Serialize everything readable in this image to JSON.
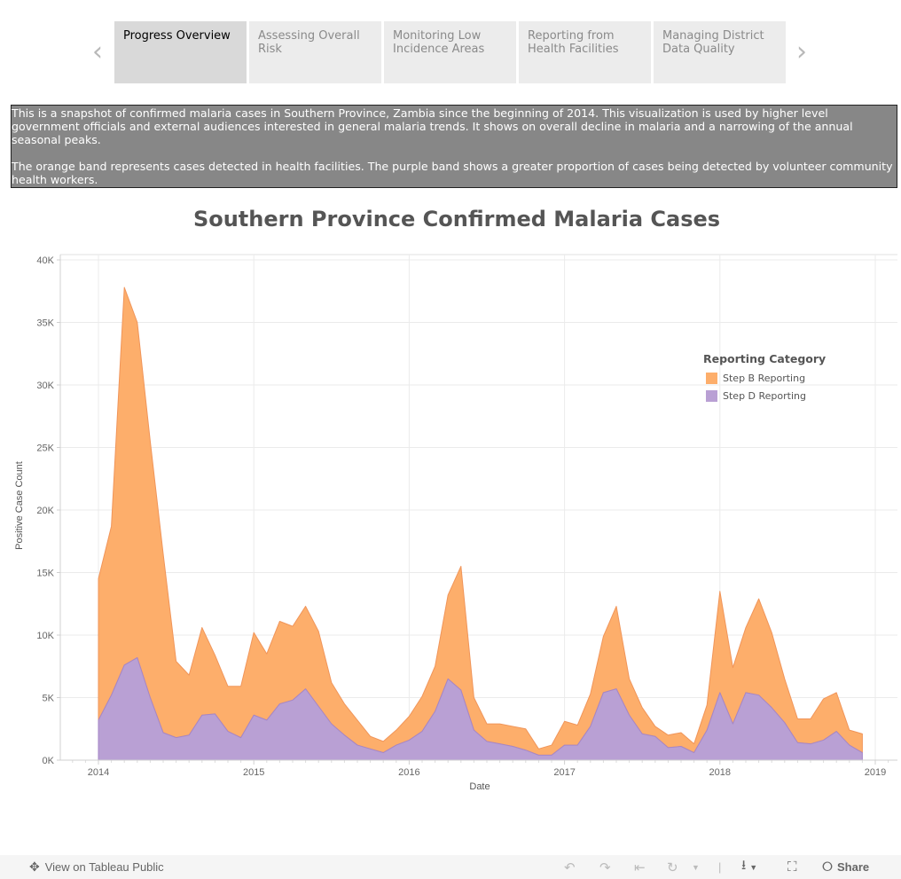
{
  "story_nav": {
    "prev_icon": "chevron-left-icon",
    "next_icon": "chevron-right-icon",
    "tabs": [
      {
        "label": "Progress Overview",
        "active": true
      },
      {
        "label": "Assessing Overall Risk",
        "active": false
      },
      {
        "label": "Monitoring Low Incidence Areas",
        "active": false
      },
      {
        "label": "Reporting from Health Facilities",
        "active": false
      },
      {
        "label": "Managing District Data Quality",
        "active": false
      }
    ]
  },
  "description": {
    "paragraph1": "This is a snapshot of confirmed malaria cases in Southern Province, Zambia since the beginning of 2014. This visualization is used by higher level government officials and external audiences interested in general malaria trends. It shows on overall decline in malaria and a narrowing of the annual seasonal peaks.",
    "paragraph2": "The orange band represents cases detected in health facilities. The purple band shows a greater proportion of cases being detected by volunteer community health workers."
  },
  "chart_data": {
    "type": "area",
    "stacked": true,
    "title": "Southern Province Confirmed Malaria Cases",
    "xlabel": "Date",
    "ylabel": "Positive Case Count",
    "ylim": [
      0,
      40000
    ],
    "yticks": [
      0,
      5000,
      10000,
      15000,
      20000,
      25000,
      30000,
      35000,
      40000
    ],
    "ytick_labels": [
      "0K",
      "5K",
      "10K",
      "15K",
      "20K",
      "25K",
      "30K",
      "35K",
      "40K"
    ],
    "xticks": [
      "2014",
      "2015",
      "2016",
      "2017",
      "2018",
      "2019"
    ],
    "x_start": "2014-01",
    "x_interval": "month",
    "grid": true,
    "legend": {
      "title": "Reporting Category",
      "placement": "top-right"
    },
    "series": [
      {
        "name": "Step D Reporting",
        "color": "#b9a0d4",
        "line_color": "#a586c6",
        "values": [
          3200,
          5200,
          7600,
          8200,
          5000,
          2200,
          1800,
          2000,
          3600,
          3700,
          2300,
          1800,
          3600,
          3200,
          4500,
          4800,
          5700,
          4300,
          2900,
          2000,
          1200,
          900,
          600,
          1200,
          1600,
          2300,
          3900,
          6500,
          5600,
          2400,
          1500,
          1300,
          1100,
          800,
          400,
          400,
          1200,
          1200,
          2700,
          5400,
          5700,
          3600,
          2100,
          1900,
          1000,
          1100,
          600,
          2400,
          5400,
          2900,
          5400,
          5200,
          4200,
          3000,
          1400,
          1300,
          1600,
          2300,
          1200,
          600
        ]
      },
      {
        "name": "Step B Reporting",
        "color": "#fdae6b",
        "line_color": "#f0955a",
        "values": [
          11300,
          13500,
          30200,
          26800,
          20500,
          14300,
          6100,
          4800,
          7000,
          4700,
          3600,
          4100,
          6600,
          5300,
          6600,
          5900,
          6600,
          6000,
          3300,
          2500,
          2000,
          1000,
          900,
          1200,
          1900,
          2800,
          3600,
          6700,
          9900,
          2600,
          1400,
          1600,
          1600,
          1700,
          500,
          800,
          1900,
          1600,
          2600,
          4500,
          6600,
          2900,
          2100,
          800,
          1000,
          1100,
          700,
          2000,
          8100,
          4500,
          5200,
          7700,
          6000,
          3500,
          1900,
          2000,
          3300,
          3100,
          1200,
          1500
        ]
      }
    ]
  },
  "toolbar": {
    "view_on_public": "View on Tableau Public",
    "share": "Share"
  }
}
